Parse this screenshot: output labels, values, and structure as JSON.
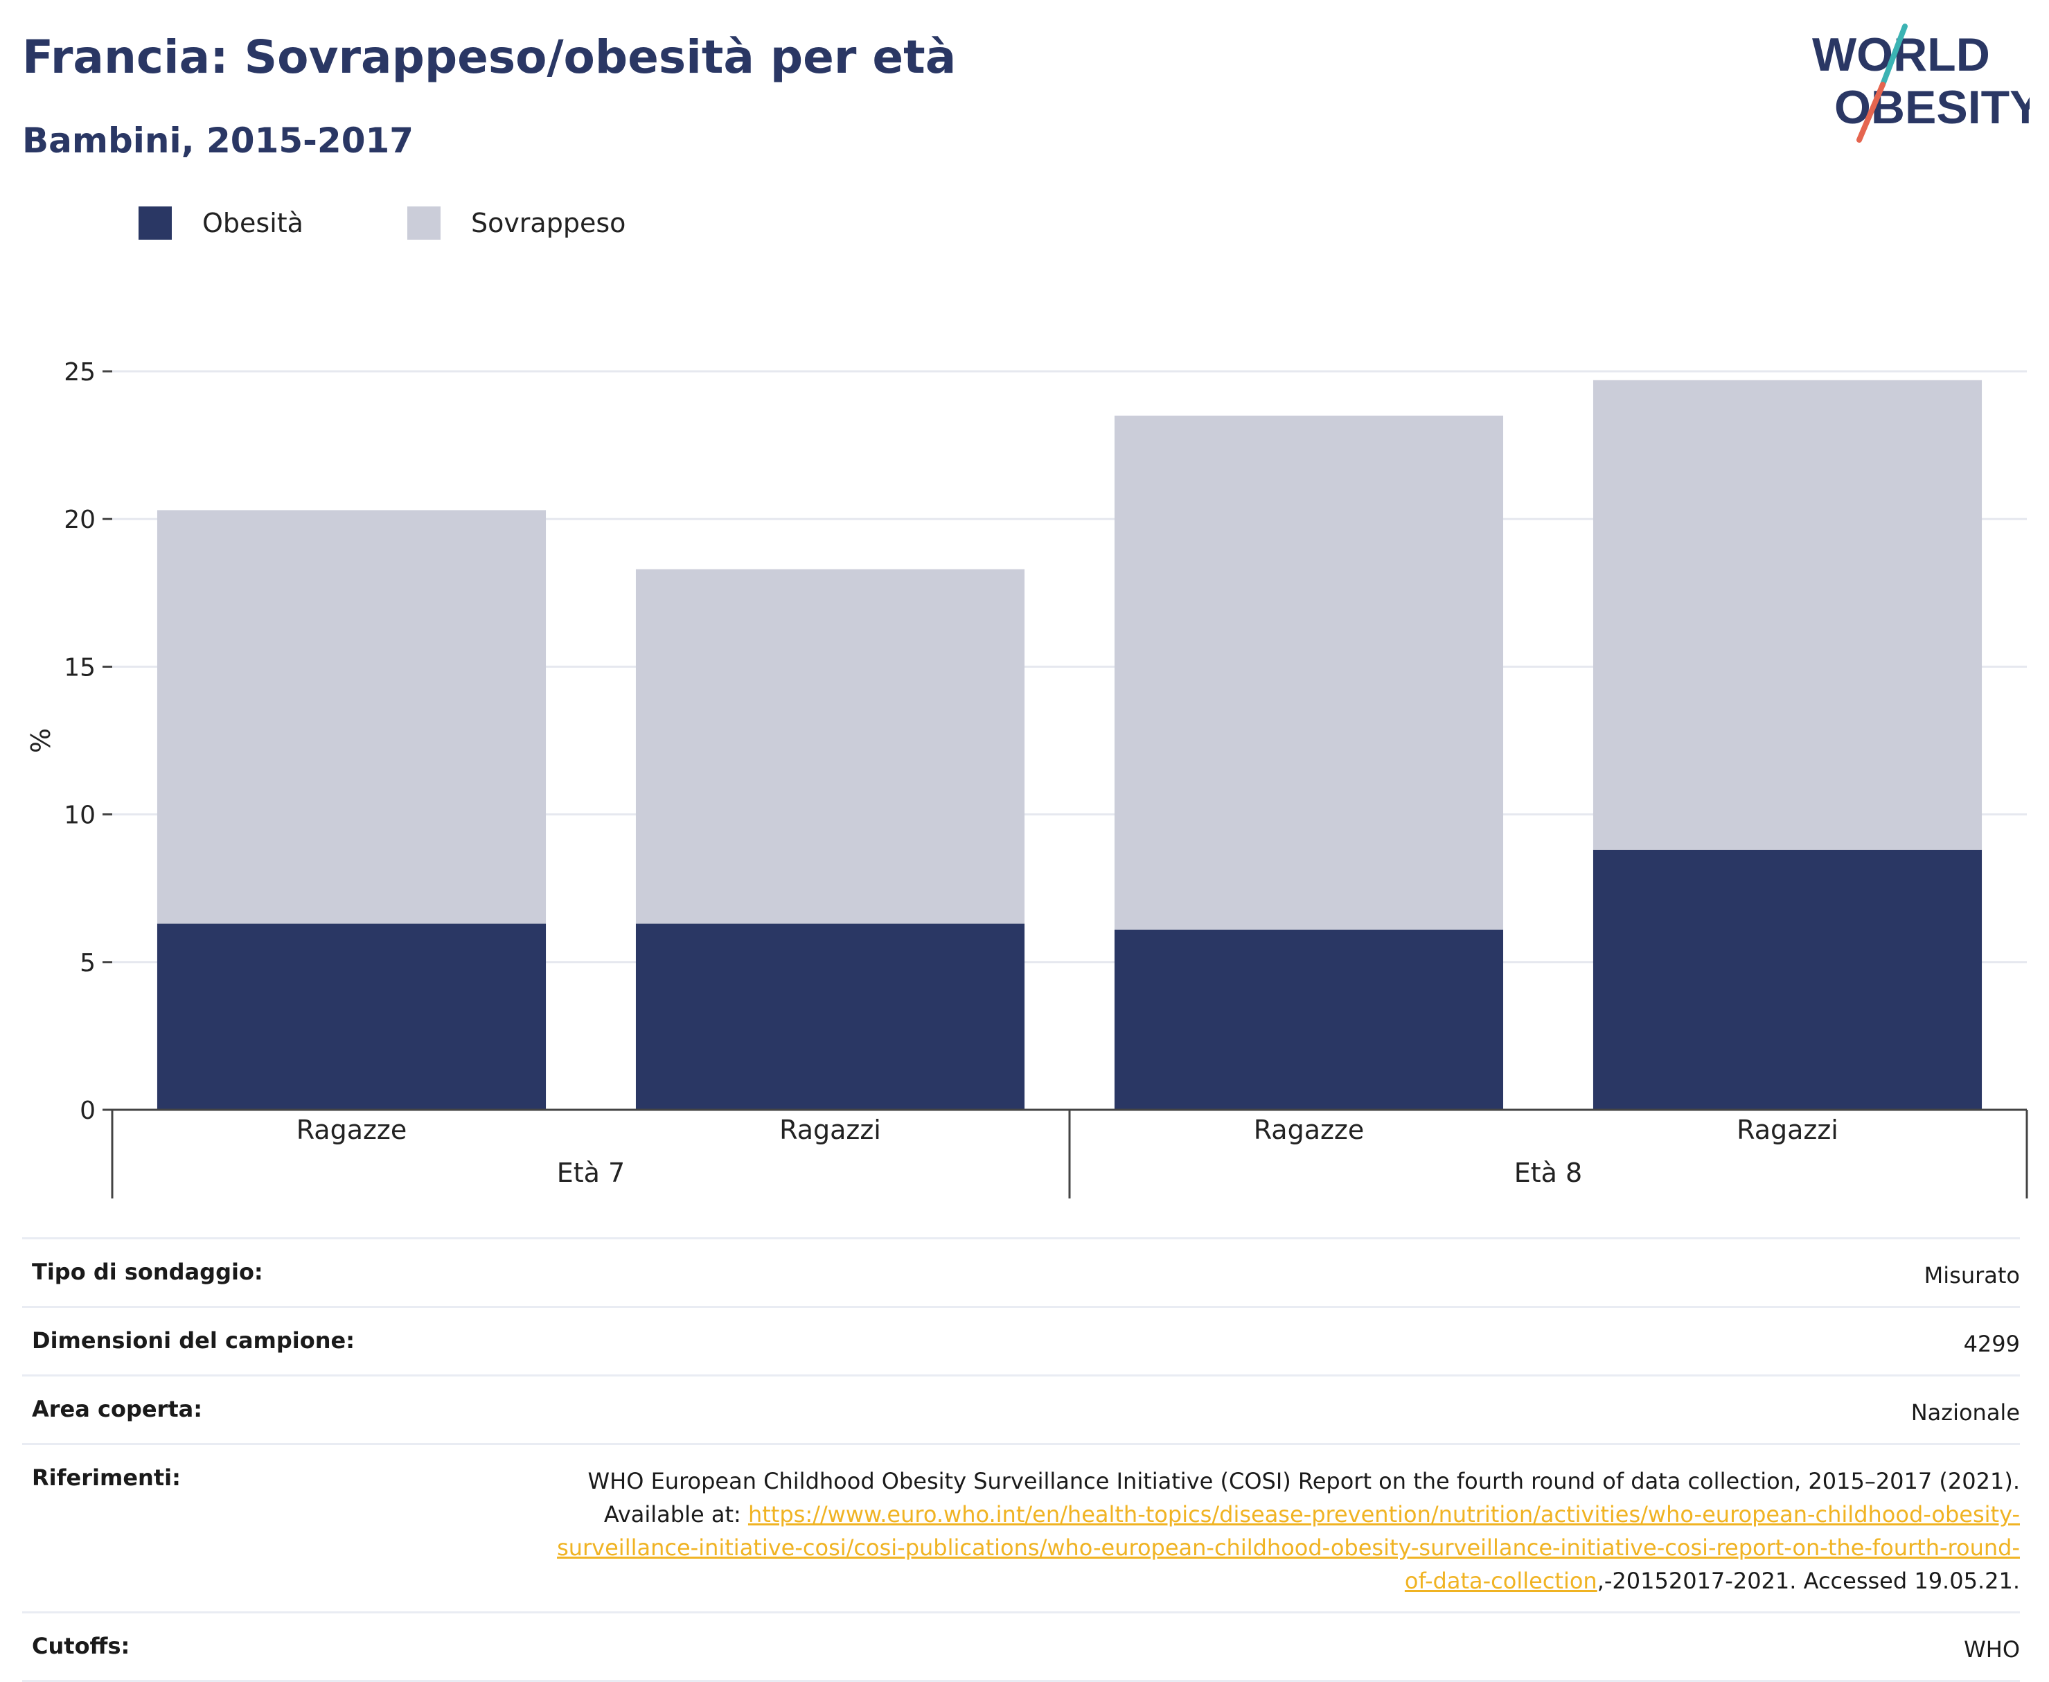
{
  "title": "Francia: Sovrappeso/obesità per età",
  "subtitle": "Bambini, 2015-2017",
  "logo": {
    "line1": "WORLD",
    "line2": "OBESITY",
    "colors": {
      "text": "#2a3764",
      "accent_teal": "#3bb3b3",
      "accent_red": "#e5654f"
    }
  },
  "legend": [
    {
      "label": "Obesità",
      "color": "#2a3764"
    },
    {
      "label": "Sovrappeso",
      "color": "#cbcdd9"
    }
  ],
  "chart_data": {
    "type": "bar",
    "stacked": true,
    "ylabel": "%",
    "ylim": [
      0,
      25
    ],
    "yticks": [
      0,
      5,
      10,
      15,
      20,
      25
    ],
    "grid": true,
    "legend_position": "top-left",
    "categories": [
      "Ragazze",
      "Ragazzi",
      "Ragazze",
      "Ragazzi"
    ],
    "groups": [
      {
        "label": "Età 7",
        "categories": [
          0,
          1
        ]
      },
      {
        "label": "Età 8",
        "categories": [
          2,
          3
        ]
      }
    ],
    "series": [
      {
        "name": "Obesità",
        "color": "#2a3764",
        "values": [
          6.3,
          6.3,
          6.1,
          8.8
        ]
      },
      {
        "name": "Sovrappeso",
        "color": "#cbcdd9",
        "values": [
          14.0,
          12.0,
          17.4,
          15.9
        ]
      }
    ]
  },
  "info": {
    "survey_type": {
      "label": "Tipo di sondaggio:",
      "value": "Misurato"
    },
    "sample_size": {
      "label": "Dimensioni del campione:",
      "value": "4299"
    },
    "area": {
      "label": "Area coperta:",
      "value": "Nazionale"
    },
    "references": {
      "label": "Riferimenti:",
      "text1": "WHO European Childhood Obesity Surveillance Initiative (COSI) Report on the fourth round of data collection, 2015–2017 (2021).",
      "text2": "Available at: ",
      "url1": "https://www.euro.who.int/en/health-topics/disease-prevention/nutrition/activities/who-european-childhood-obesity-",
      "url2": "surveillance-initiative-cosi/cosi-publications/who-european-childhood-obesity-surveillance-initiative-cosi-report-on-the-fourth-round-",
      "url3": "of-data-collection",
      "text3": ",-20152017-2021. Accessed 19.05.21."
    },
    "cutoffs": {
      "label": "Cutoffs:",
      "value": "WHO"
    }
  }
}
